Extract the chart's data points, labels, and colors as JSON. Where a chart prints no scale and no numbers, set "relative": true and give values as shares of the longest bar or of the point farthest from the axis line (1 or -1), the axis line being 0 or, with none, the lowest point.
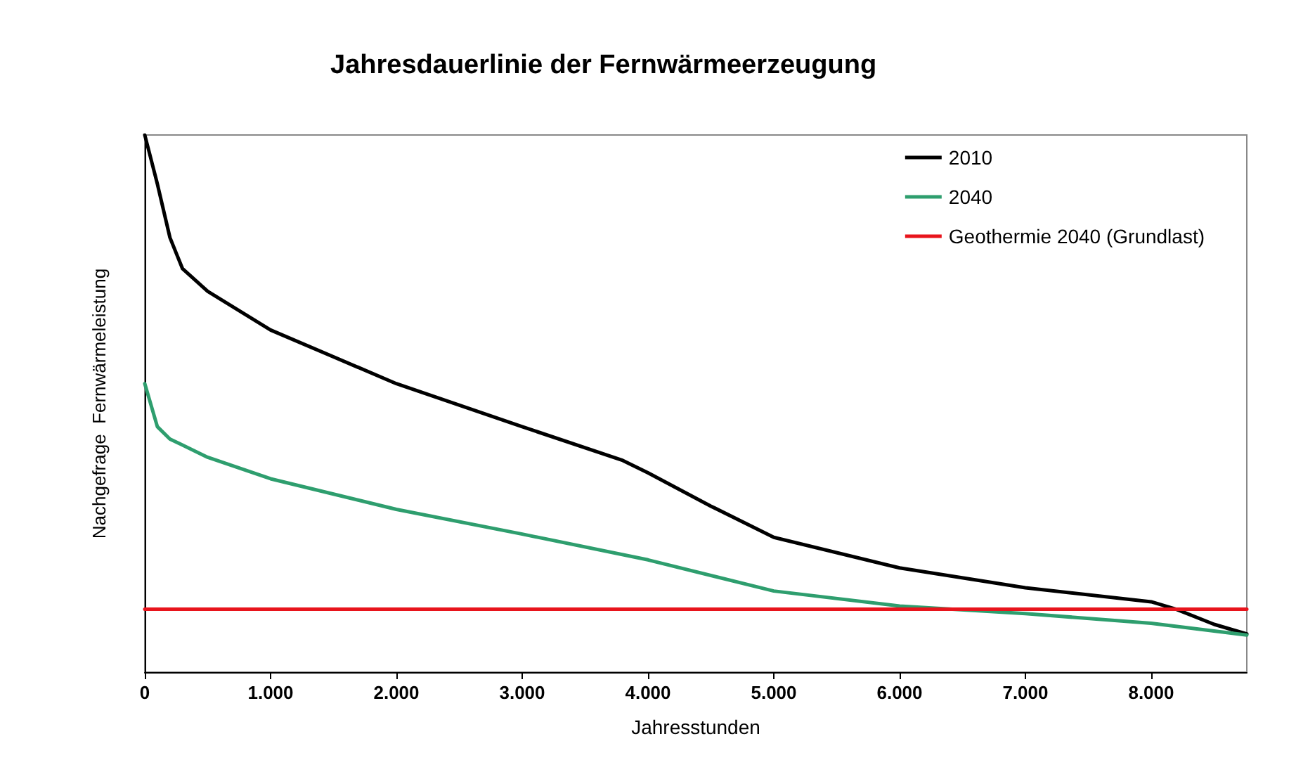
{
  "chart_data": {
    "type": "line",
    "title": "Jahresdauerlinie der Fernwärmeerzeugung",
    "xlabel": "Jahresstunden",
    "ylabel": "Nachgefrage  Fernwärmeleistung",
    "relative": true,
    "grid": false,
    "legend": "top right",
    "marker": "none",
    "line_style": "solid",
    "xlim": [
      0,
      8760
    ],
    "xticks": [
      {
        "value": 0,
        "label": "0"
      },
      {
        "value": 1000,
        "label": "1.000"
      },
      {
        "value": 2000,
        "label": "2.000"
      },
      {
        "value": 3000,
        "label": "3.000"
      },
      {
        "value": 4000,
        "label": "4.000"
      },
      {
        "value": 5000,
        "label": "5.000"
      },
      {
        "value": 6000,
        "label": "6.000"
      },
      {
        "value": 7000,
        "label": "7.000"
      },
      {
        "value": 8000,
        "label": "8.000"
      }
    ],
    "series": [
      {
        "name": "2010",
        "color": "#000000",
        "x": [
          0,
          100,
          200,
          300,
          500,
          1000,
          2000,
          3000,
          3800,
          4000,
          4500,
          5000,
          6000,
          7000,
          8000,
          8200,
          8500,
          8760
        ],
        "values": [
          1.0,
          0.909,
          0.809,
          0.751,
          0.709,
          0.637,
          0.537,
          0.457,
          0.394,
          0.371,
          0.309,
          0.251,
          0.194,
          0.157,
          0.131,
          0.117,
          0.089,
          0.071
        ]
      },
      {
        "name": "2040",
        "color": "#2e9e6e",
        "x": [
          0,
          100,
          200,
          500,
          1000,
          2000,
          3000,
          4000,
          5000,
          6000,
          7000,
          8000,
          8760
        ],
        "values": [
          0.537,
          0.457,
          0.434,
          0.4,
          0.36,
          0.303,
          0.257,
          0.209,
          0.151,
          0.123,
          0.109,
          0.091,
          0.069
        ]
      },
      {
        "name": "Geothermie 2040 (Grundlast)",
        "color": "#e8141c",
        "x": [
          0,
          8760
        ],
        "values": [
          0.117,
          0.117
        ]
      }
    ]
  }
}
